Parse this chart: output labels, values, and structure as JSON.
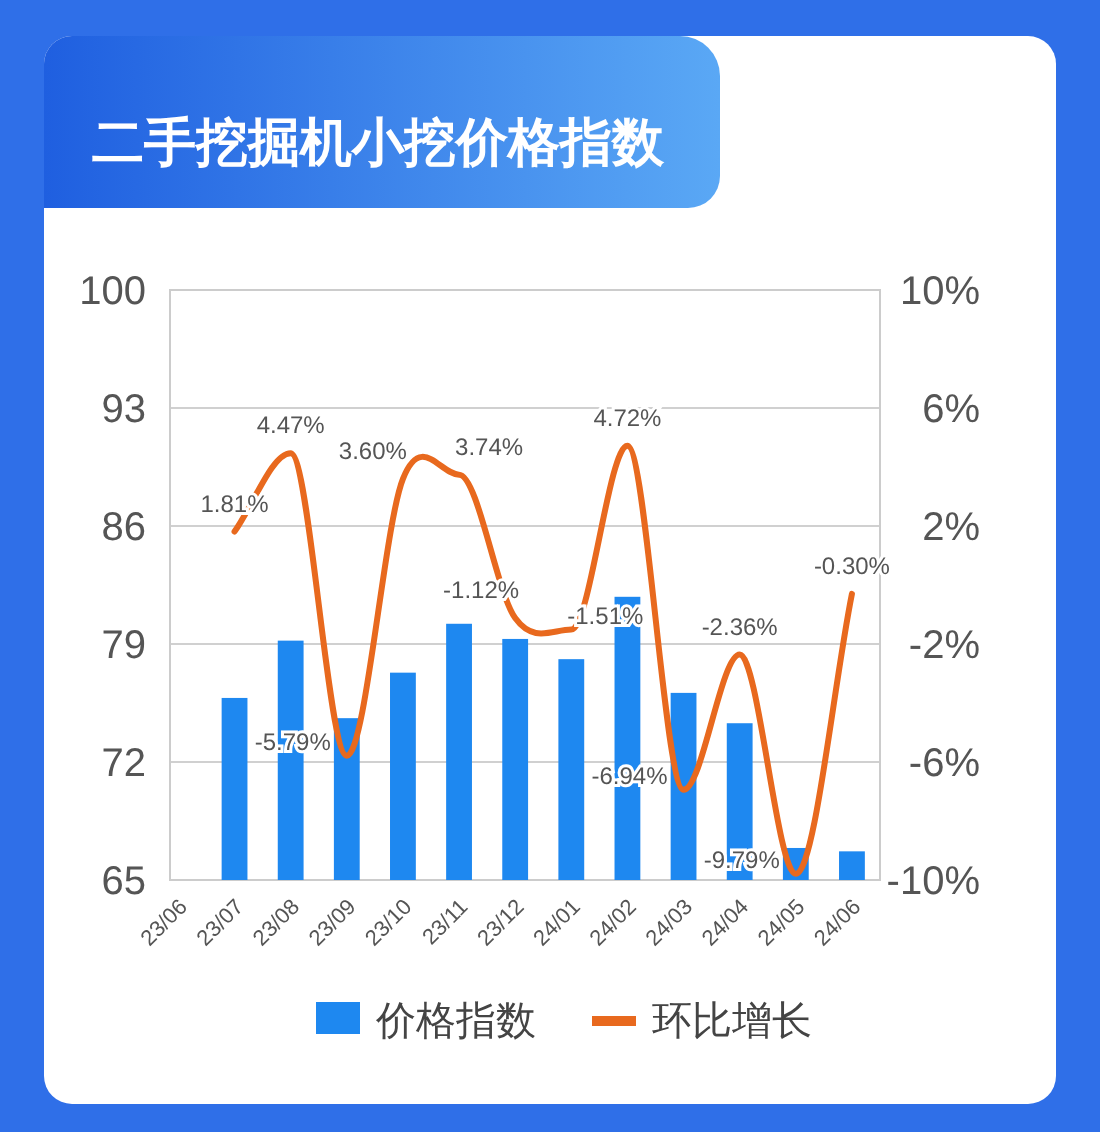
{
  "chart_data": {
    "type": "bar",
    "title": "二手挖掘机小挖价格指数",
    "categories": [
      "23/06",
      "23/07",
      "23/08",
      "23/09",
      "23/10",
      "23/11",
      "23/12",
      "24/01",
      "24/02",
      "24/03",
      "24/04",
      "24/05",
      "24/06"
    ],
    "series": [
      {
        "name": "价格指数",
        "color": "#1e88f0",
        "values": [
          null,
          75.8,
          79.2,
          74.6,
          77.3,
          80.2,
          79.3,
          78.1,
          81.8,
          76.1,
          74.3,
          66.9,
          66.7
        ]
      },
      {
        "name": "环比增长",
        "type": "line",
        "axis": "y2",
        "color": "#e8691e",
        "values": [
          null,
          1.81,
          4.47,
          -5.79,
          3.6,
          3.74,
          -1.12,
          -1.51,
          4.72,
          -6.94,
          -2.36,
          -9.79,
          -0.3
        ],
        "value_labels": [
          null,
          "1.81%",
          "4.47%",
          "-5.79%",
          "3.60%",
          "3.74%",
          "-1.12%",
          "-1.51%",
          "4.72%",
          "-6.94%",
          "-2.36%",
          "-9.79%",
          "-0.30%"
        ]
      }
    ],
    "ylim": [
      65,
      100
    ],
    "yticks": [
      65,
      72,
      79,
      86,
      93,
      100
    ],
    "y2lim": [
      -10,
      10
    ],
    "y2ticks": [
      {
        "value": -10,
        "label": "-10%"
      },
      {
        "value": -6,
        "label": "-6%"
      },
      {
        "value": -2,
        "label": "-2%"
      },
      {
        "value": 2,
        "label": "2%"
      },
      {
        "value": 6,
        "label": "6%"
      },
      {
        "value": 10,
        "label": "10%"
      }
    ],
    "grid": "y",
    "legend": "bottom",
    "marker": "none",
    "line_style": "solid"
  }
}
